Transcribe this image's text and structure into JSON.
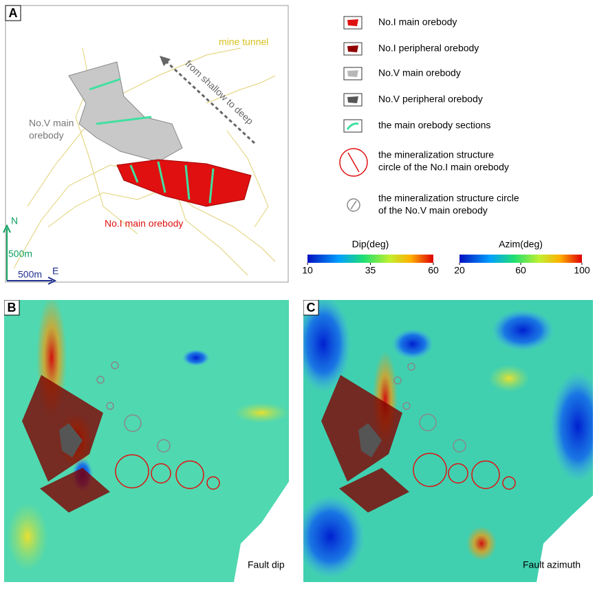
{
  "panels": {
    "a": {
      "label": "A",
      "mine_tunnel": "mine tunnel",
      "direction": "from shallow to deep",
      "no5_label": [
        "No.V main",
        "orebody"
      ],
      "no1_label": "No.I main orebody",
      "north": "N",
      "east": "E",
      "scale_n": "500m",
      "scale_e": "500m"
    },
    "b": {
      "label": "B",
      "caption": "Fault dip"
    },
    "c": {
      "label": "C",
      "caption": "Fault azimuth"
    }
  },
  "legend": [
    {
      "lines": [
        "No.I main orebody"
      ]
    },
    {
      "lines": [
        "No.I peripheral orebody"
      ]
    },
    {
      "lines": [
        "No.V main orebody"
      ]
    },
    {
      "lines": [
        "No.V peripheral orebody"
      ]
    },
    {
      "lines": [
        "the main orebody sections"
      ]
    },
    {
      "lines": [
        "the mineralization structure",
        "circle of the No.I main orebody"
      ]
    },
    {
      "lines": [
        "the mineralization structure circle",
        "of the No.V main orebody"
      ]
    }
  ],
  "colorbars": [
    {
      "title": "Dip(deg)",
      "lim": [
        10,
        60
      ],
      "ticks": [
        10,
        35,
        60
      ]
    },
    {
      "title": "Azim(deg)",
      "lim": [
        20,
        100
      ],
      "ticks": [
        20,
        60,
        100
      ]
    }
  ]
}
